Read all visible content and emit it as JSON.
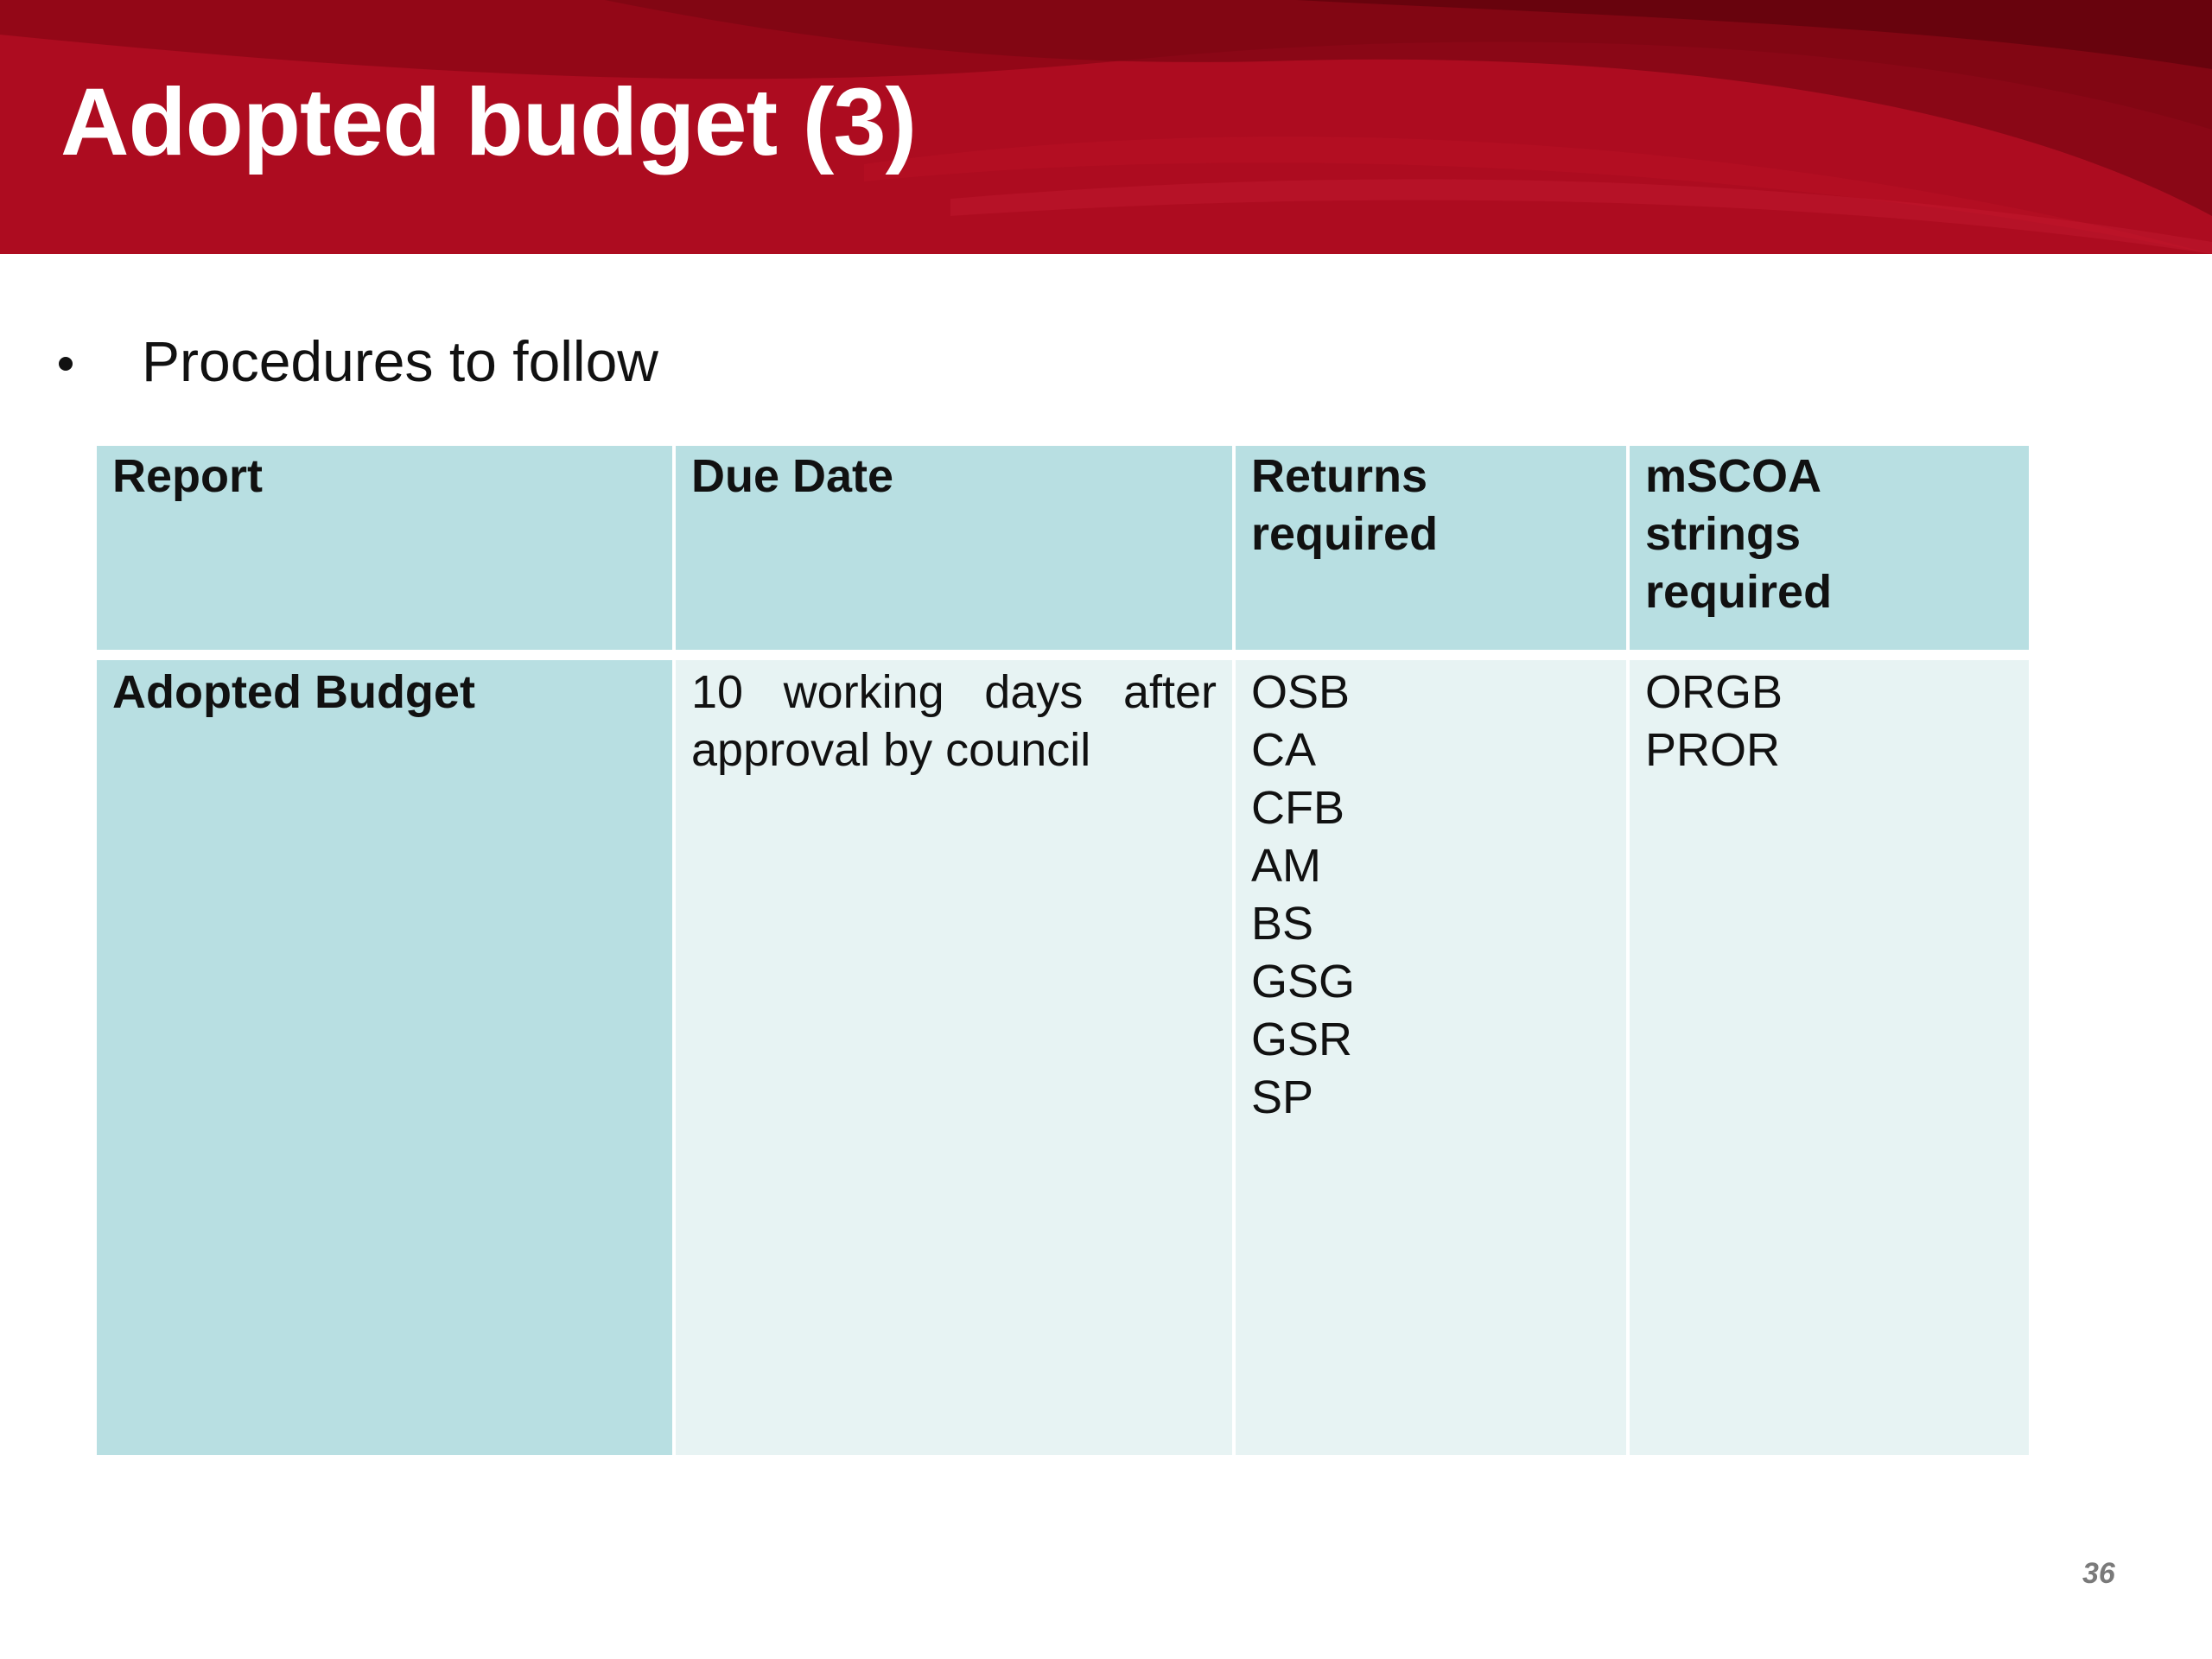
{
  "slide": {
    "title": "Adopted budget (3)",
    "bullet": "Procedures to follow",
    "page_number": "36"
  },
  "table": {
    "headers": {
      "report": "Report",
      "due_date": "Due Date",
      "returns": [
        "Returns",
        "required"
      ],
      "mscoa": [
        "mSCOA",
        "strings",
        "required"
      ]
    },
    "row": {
      "report": "Adopted Budget",
      "due_date": "10 working days after approval by council",
      "returns": [
        "OSB",
        "CA",
        "CFB",
        "AM",
        "BS",
        "GSG",
        "GSR",
        "SP"
      ],
      "mscoa": [
        "ORGB",
        "PROR"
      ]
    }
  },
  "colors": {
    "header_band": "#a80c1e",
    "header_cell": "#b8dfe2",
    "body_cell": "#e7f3f3",
    "title_text": "#ffffff"
  }
}
